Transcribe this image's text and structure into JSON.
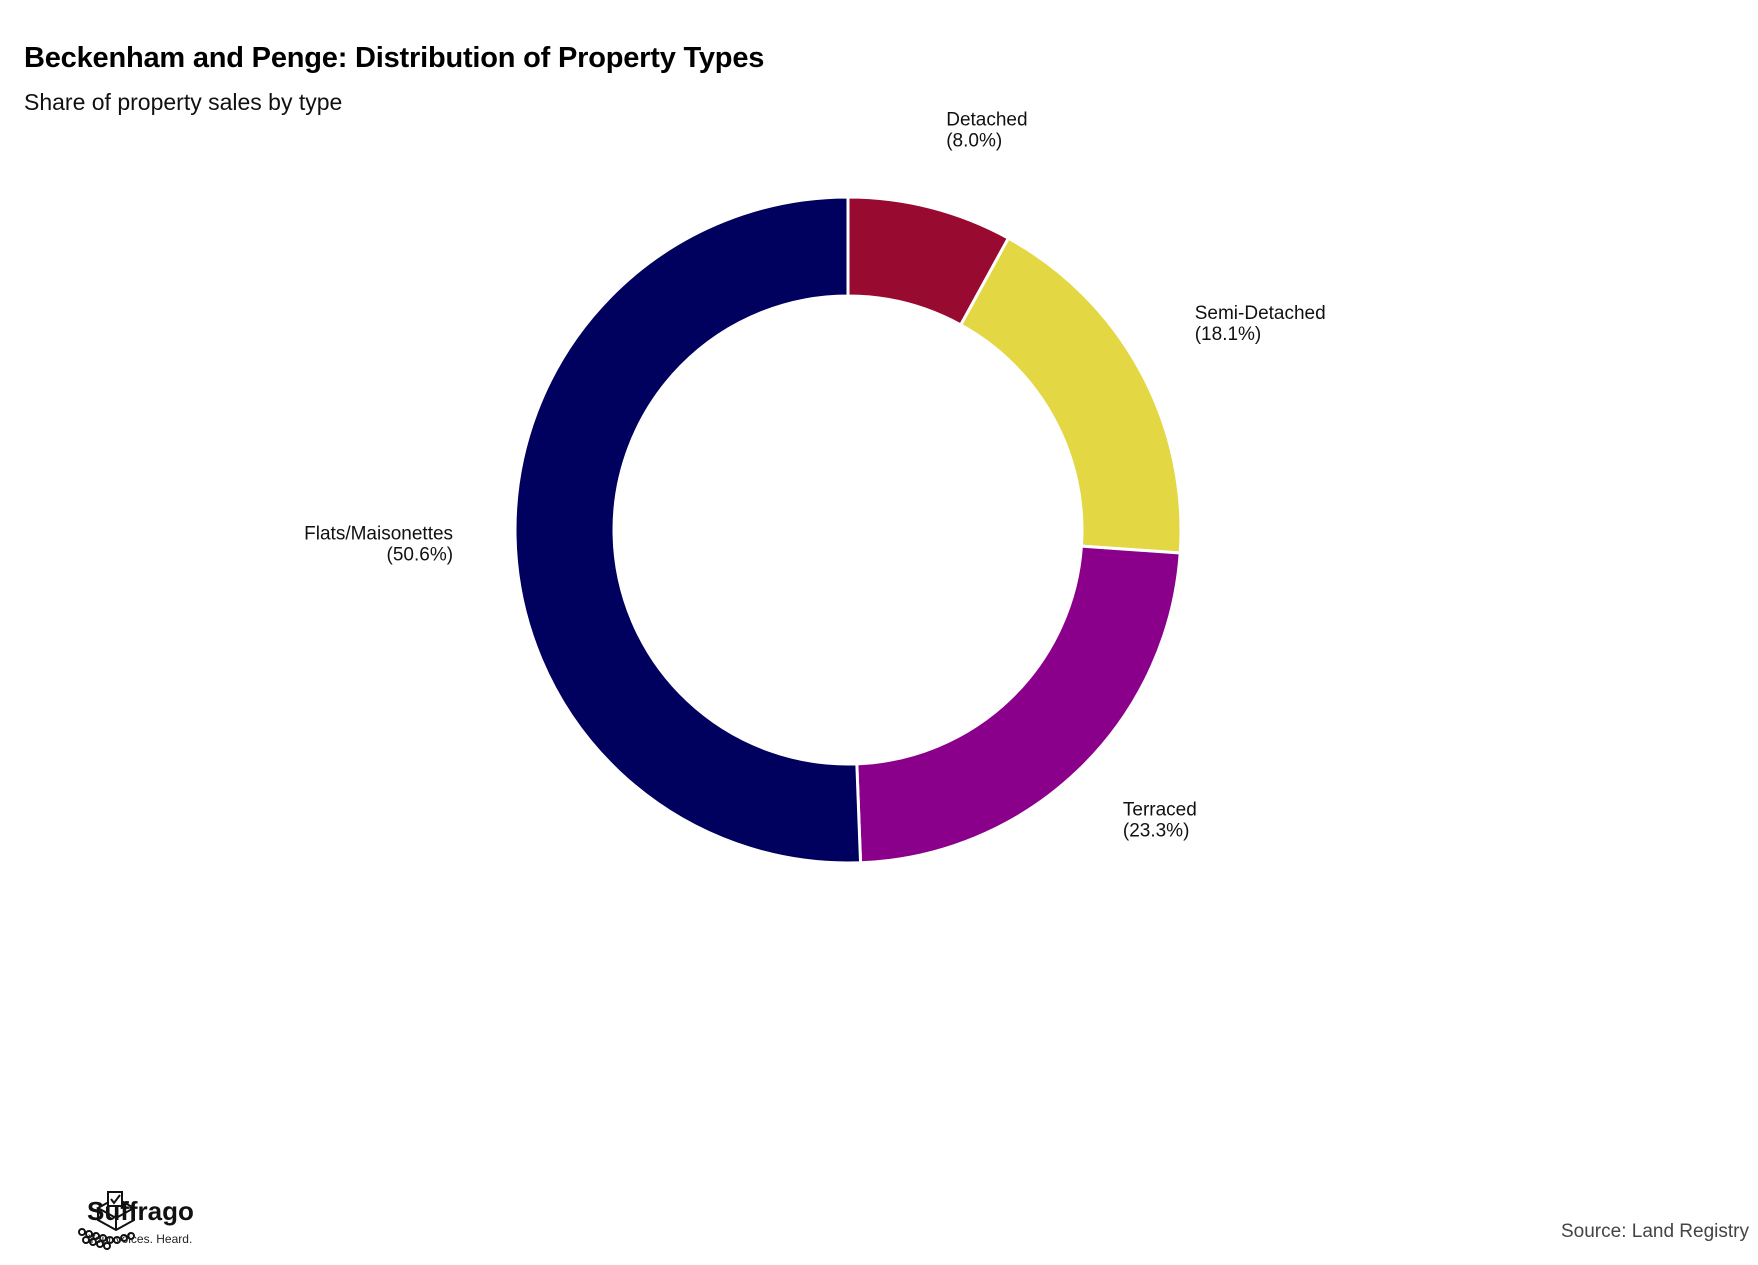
{
  "header": {
    "title": "Beckenham and Penge: Distribution of Property Types",
    "subtitle": "Share of property sales by type"
  },
  "chart_data": {
    "type": "pie",
    "variant": "donut",
    "title": "Beckenham and Penge: Distribution of Property Types",
    "subtitle": "Share of property sales by type",
    "slices": [
      {
        "name": "Detached",
        "value": 8.0,
        "label": "(8.0%)",
        "color": "#990A31"
      },
      {
        "name": "Semi-Detached",
        "value": 18.1,
        "label": "(18.1%)",
        "color": "#E3D744"
      },
      {
        "name": "Terraced",
        "value": 23.3,
        "label": "(23.3%)",
        "color": "#8B008B"
      },
      {
        "name": "Flats/Maisonettes",
        "value": 50.6,
        "label": "(50.6%)",
        "color": "#00005E"
      }
    ],
    "start_angle": "12 o'clock",
    "direction": "clockwise"
  },
  "footer": {
    "brand_name": "Suffrago",
    "brand_tagline": "Your voices. Heard.",
    "source": "Source: Land Registry"
  }
}
